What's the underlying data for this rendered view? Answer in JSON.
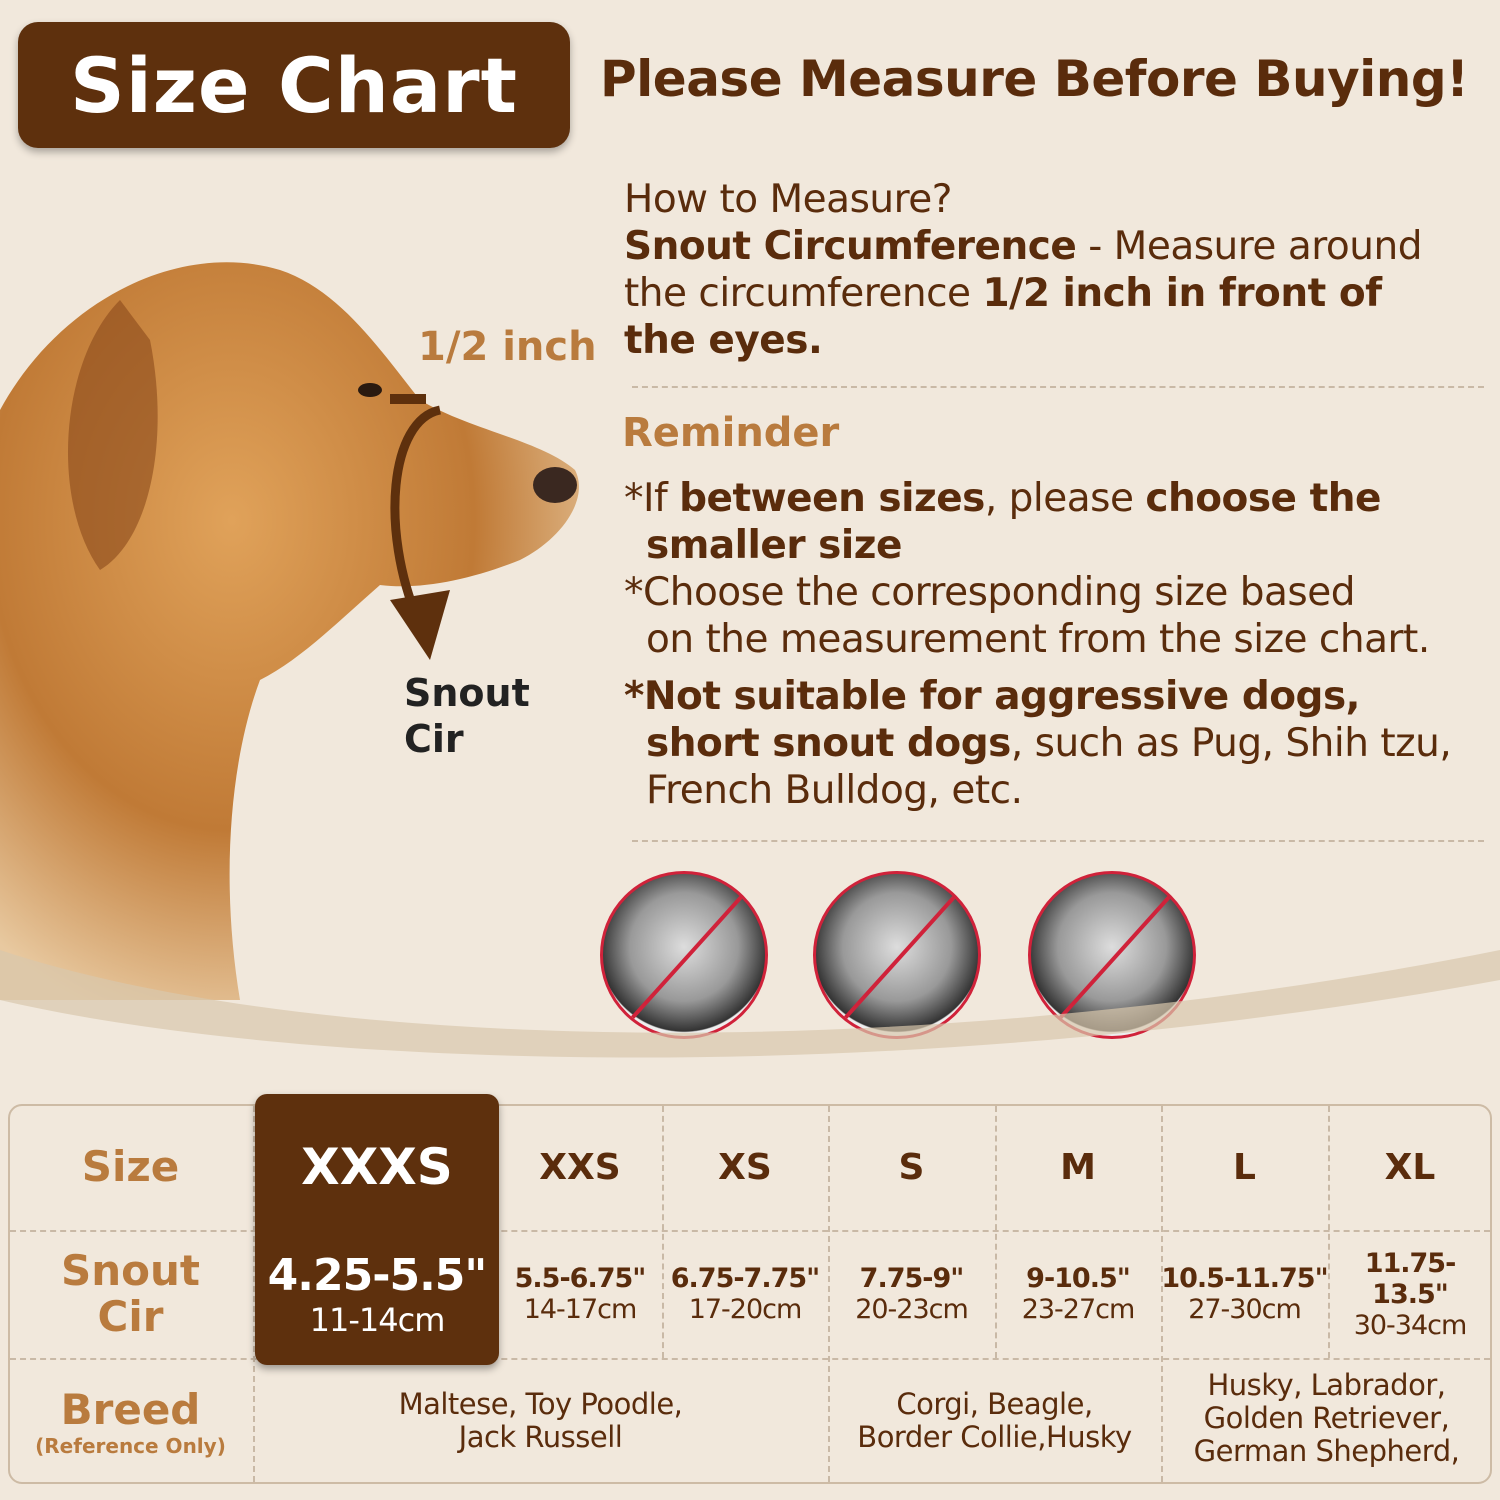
{
  "title": "Size Chart",
  "headline": "Please Measure Before Buying!",
  "diagram": {
    "half_inch": "1/2 inch",
    "snout_1": "Snout",
    "snout_2": "Cir"
  },
  "howto": {
    "question": "How to Measure?",
    "term": "Snout Circumference",
    "l1_rest": " - Measure around",
    "l2_a": "the circumference ",
    "l2_b": "1/2 inch in front of",
    "l3": "the eyes."
  },
  "reminder": {
    "title": "Reminder",
    "r1_a": "*If ",
    "r1_b": "between sizes",
    "r1_c": ", please ",
    "r1_d": "choose the",
    "r1_e": "smaller size",
    ".": ".",
    "r2_a": "*Choose the corresponding size based",
    "r2_b": "on the measurement from the size chart.",
    "r3_a": "*Not suitable for aggressive dogs,",
    "r3_b": "short snout dogs",
    "r3_c": ", such as Pug, Shih tzu,",
    "r3_d": "French Bulldog, etc."
  },
  "not_suitable_icons": [
    "shih-tzu",
    "pug",
    "french-bulldog"
  ],
  "colors": {
    "brown": "#5e300d",
    "tan": "#b97b3e",
    "prohibit": "#d0223a",
    "background": "#f1e8dc"
  },
  "table": {
    "row_labels": {
      "size": "Size",
      "snout_1": "Snout",
      "snout_2": "Cir",
      "breed": "Breed",
      "breed_note": "(Reference Only)"
    },
    "sizes": [
      {
        "size": "XXXS",
        "inch": "4.25-5.5\"",
        "cm": "11-14cm",
        "highlighted": true
      },
      {
        "size": "XXS",
        "inch": "5.5-6.75\"",
        "cm": "14-17cm"
      },
      {
        "size": "XS",
        "inch": "6.75-7.75\"",
        "cm": "17-20cm"
      },
      {
        "size": "S",
        "inch": "7.75-9\"",
        "cm": "20-23cm"
      },
      {
        "size": "M",
        "inch": "9-10.5\"",
        "cm": "23-27cm"
      },
      {
        "size": "L",
        "inch": "10.5-11.75\"",
        "cm": "27-30cm"
      },
      {
        "size": "XL",
        "inch": "11.75-13.5\"",
        "cm": "30-34cm"
      }
    ],
    "breeds": [
      {
        "span": "XXXS-XS",
        "lines": [
          "Maltese, Toy Poodle,",
          "Jack Russell"
        ]
      },
      {
        "span": "S-M",
        "lines": [
          "Corgi, Beagle,",
          "Border Collie,Husky"
        ]
      },
      {
        "span": "L-XL",
        "lines": [
          "Husky, Labrador,",
          "Golden Retriever,",
          "German Shepherd,"
        ]
      }
    ]
  }
}
